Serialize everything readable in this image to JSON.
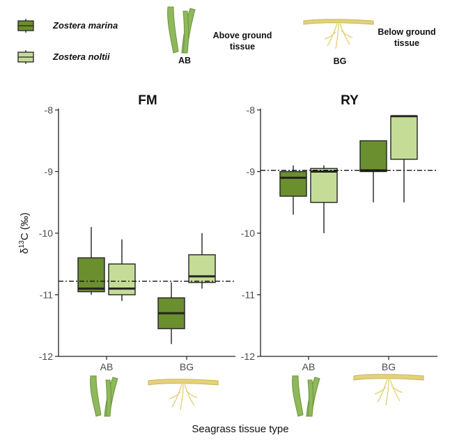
{
  "chart_data": {
    "type": "boxplot",
    "xlabel": "Seagrass tissue type",
    "ylabel": "δ13C (‰)",
    "ylabel_parts": {
      "delta": "δ",
      "superscript": "13",
      "element_unit": "C (‰)"
    },
    "ylim": [
      -12,
      -8
    ],
    "yticks": [
      -8,
      -9,
      -10,
      -11,
      -12
    ],
    "categories": [
      "AB",
      "BG"
    ],
    "legend": [
      {
        "name": "Zostera marina",
        "color": "#6b8e2f"
      },
      {
        "name": "Zostera noltii",
        "color": "#c5dc97"
      }
    ],
    "tissue_legend": [
      {
        "code": "AB",
        "label_lines": [
          "Above ground",
          "tissue"
        ]
      },
      {
        "code": "BG",
        "label_lines": [
          "Below ground",
          "tissue"
        ]
      }
    ],
    "panels": [
      {
        "title": "FM",
        "reference_line": -10.78,
        "boxes": [
          {
            "category": "AB",
            "species": "Zostera marina",
            "whisker_low": -11.0,
            "q1": -10.95,
            "median": -10.9,
            "q3": -10.4,
            "whisker_high": -9.9
          },
          {
            "category": "AB",
            "species": "Zostera noltii",
            "whisker_low": -11.1,
            "q1": -11.0,
            "median": -10.9,
            "q3": -10.5,
            "whisker_high": -10.1
          },
          {
            "category": "BG",
            "species": "Zostera marina",
            "whisker_low": -11.8,
            "q1": -11.55,
            "median": -11.3,
            "q3": -11.05,
            "whisker_high": -10.8
          },
          {
            "category": "BG",
            "species": "Zostera noltii",
            "whisker_low": -10.9,
            "q1": -10.8,
            "median": -10.7,
            "q3": -10.35,
            "whisker_high": -10.0
          }
        ]
      },
      {
        "title": "RY",
        "reference_line": -8.98,
        "boxes": [
          {
            "category": "AB",
            "species": "Zostera marina",
            "whisker_low": -9.7,
            "q1": -9.4,
            "median": -9.1,
            "q3": -9.0,
            "whisker_high": -8.9
          },
          {
            "category": "AB",
            "species": "Zostera noltii",
            "whisker_low": -10.0,
            "q1": -9.5,
            "median": -9.0,
            "q3": -8.95,
            "whisker_high": -8.9
          },
          {
            "category": "BG",
            "species": "Zostera marina",
            "whisker_low": -9.5,
            "q1": -9.0,
            "median": -8.98,
            "q3": -8.5,
            "whisker_high": -8.5
          },
          {
            "category": "BG",
            "species": "Zostera noltii",
            "whisker_low": -9.5,
            "q1": -8.8,
            "median": -8.1,
            "q3": -8.1,
            "whisker_high": -8.1
          }
        ]
      }
    ]
  },
  "colors": {
    "marina": "#6b8e2f",
    "noltii": "#c5dc97",
    "leaf": "#8fb85a",
    "root": "#e4d27a"
  }
}
